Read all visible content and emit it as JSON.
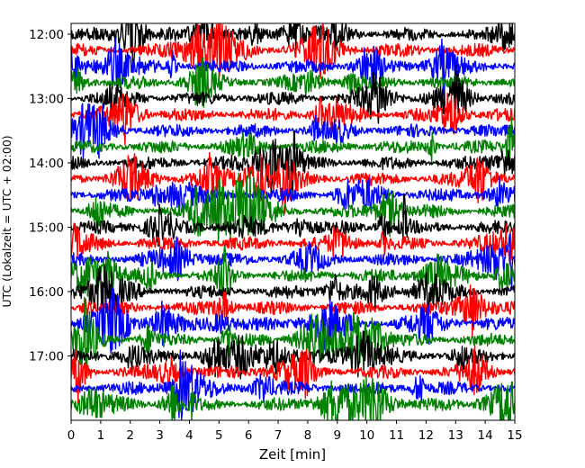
{
  "chart_data": {
    "type": "line",
    "title": "",
    "xlabel": "Zeit  [min]",
    "ylabel": "UTC (Lokalzeit = UTC + 02:00)",
    "xlim": [
      0,
      15
    ],
    "x_ticks": [
      "0",
      "1",
      "2",
      "3",
      "4",
      "5",
      "6",
      "7",
      "8",
      "9",
      "10",
      "11",
      "12",
      "13",
      "14",
      "15"
    ],
    "y_ticks": [
      "12:00",
      "13:00",
      "14:00",
      "15:00",
      "16:00",
      "17:00"
    ],
    "y_range_utc": [
      "11:50",
      "18:00"
    ],
    "trace_interval_minutes": 15,
    "trace_duration_minutes": 15,
    "trace_color_cycle": [
      "#000000",
      "#ff0000",
      "#0000ff",
      "#008000"
    ],
    "trace_start_times": [
      "12:00",
      "12:15",
      "12:30",
      "12:45",
      "13:00",
      "13:15",
      "13:30",
      "13:45",
      "14:00",
      "14:15",
      "14:30",
      "14:45",
      "15:00",
      "15:15",
      "15:30",
      "15:45",
      "16:00",
      "16:15",
      "16:30",
      "16:45",
      "17:00",
      "17:15",
      "17:30",
      "17:45"
    ],
    "grid": false,
    "legend": "none"
  }
}
